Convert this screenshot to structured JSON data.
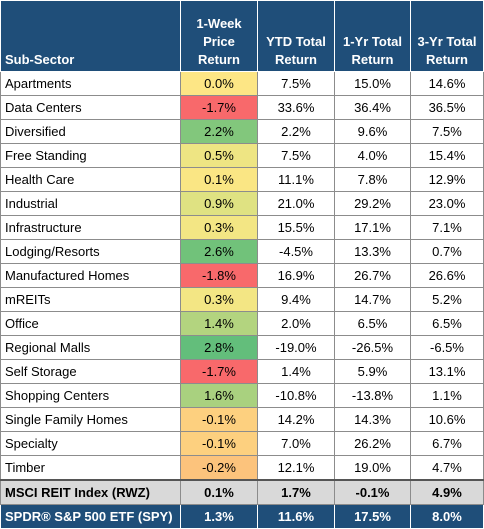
{
  "headers": {
    "subsector": "Sub-Sector",
    "week_line1": "1-Week",
    "week_line2": "Price",
    "week_line3": "Return",
    "ytd_line1": "YTD Total",
    "ytd_line2": "Return",
    "yr1_line1": "1-Yr Total",
    "yr1_line2": "Return",
    "yr3_line1": "3-Yr Total",
    "yr3_line2": "Return"
  },
  "colors": {
    "header_bg": "#1f4e79",
    "index_bg": "#d9d9d9",
    "spy_bg": "#1f4e79"
  },
  "rows": [
    {
      "name": "Apartments",
      "week": "0.0%",
      "ytd": "7.5%",
      "yr1": "15.0%",
      "yr3": "14.6%",
      "week_color": "#fde685"
    },
    {
      "name": "Data Centers",
      "week": "-1.7%",
      "ytd": "33.6%",
      "yr1": "36.4%",
      "yr3": "36.5%",
      "week_color": "#f8696b"
    },
    {
      "name": "Diversified",
      "week": "2.2%",
      "ytd": "2.2%",
      "yr1": "9.6%",
      "yr3": "7.5%",
      "week_color": "#82c77c"
    },
    {
      "name": "Free Standing",
      "week": "0.5%",
      "ytd": "7.5%",
      "yr1": "4.0%",
      "yr3": "15.4%",
      "week_color": "#eee583"
    },
    {
      "name": "Health Care",
      "week": "0.1%",
      "ytd": "11.1%",
      "yr1": "7.8%",
      "yr3": "12.9%",
      "week_color": "#fae684"
    },
    {
      "name": "Industrial",
      "week": "0.9%",
      "ytd": "21.0%",
      "yr1": "29.2%",
      "yr3": "23.0%",
      "week_color": "#dfe282"
    },
    {
      "name": "Infrastructure",
      "week": "0.3%",
      "ytd": "15.5%",
      "yr1": "17.1%",
      "yr3": "7.1%",
      "week_color": "#f3e684"
    },
    {
      "name": "Lodging/Resorts",
      "week": "2.6%",
      "ytd": "-4.5%",
      "yr1": "13.3%",
      "yr3": "0.7%",
      "week_color": "#71c27a"
    },
    {
      "name": "Manufactured Homes",
      "week": "-1.8%",
      "ytd": "16.9%",
      "yr1": "26.7%",
      "yr3": "26.6%",
      "week_color": "#f8696b"
    },
    {
      "name": "mREITs",
      "week": "0.3%",
      "ytd": "9.4%",
      "yr1": "14.7%",
      "yr3": "5.2%",
      "week_color": "#f3e684"
    },
    {
      "name": "Office",
      "week": "1.4%",
      "ytd": "2.0%",
      "yr1": "6.5%",
      "yr3": "6.5%",
      "week_color": "#b3d47f"
    },
    {
      "name": "Regional Malls",
      "week": "2.8%",
      "ytd": "-19.0%",
      "yr1": "-26.5%",
      "yr3": "-6.5%",
      "week_color": "#63be7b"
    },
    {
      "name": "Self Storage",
      "week": "-1.7%",
      "ytd": "1.4%",
      "yr1": "5.9%",
      "yr3": "13.1%",
      "week_color": "#f8696b"
    },
    {
      "name": "Shopping Centers",
      "week": "1.6%",
      "ytd": "-10.8%",
      "yr1": "-13.8%",
      "yr3": "1.1%",
      "week_color": "#a9d17f"
    },
    {
      "name": "Single Family Homes",
      "week": "-0.1%",
      "ytd": "14.2%",
      "yr1": "14.3%",
      "yr3": "10.6%",
      "week_color": "#fdd07f"
    },
    {
      "name": "Specialty",
      "week": "-0.1%",
      "ytd": "7.0%",
      "yr1": "26.2%",
      "yr3": "6.7%",
      "week_color": "#fdd07f"
    },
    {
      "name": "Timber",
      "week": "-0.2%",
      "ytd": "12.1%",
      "yr1": "19.0%",
      "yr3": "4.7%",
      "week_color": "#fcc37c"
    }
  ],
  "index_row": {
    "name": "MSCI REIT Index (RWZ)",
    "week": "0.1%",
    "ytd": "1.7%",
    "yr1": "-0.1%",
    "yr3": "4.9%"
  },
  "spy_row": {
    "name": "SPDR® S&P 500 ETF (SPY)",
    "week": "1.3%",
    "ytd": "11.6%",
    "yr1": "17.5%",
    "yr3": "8.0%"
  }
}
